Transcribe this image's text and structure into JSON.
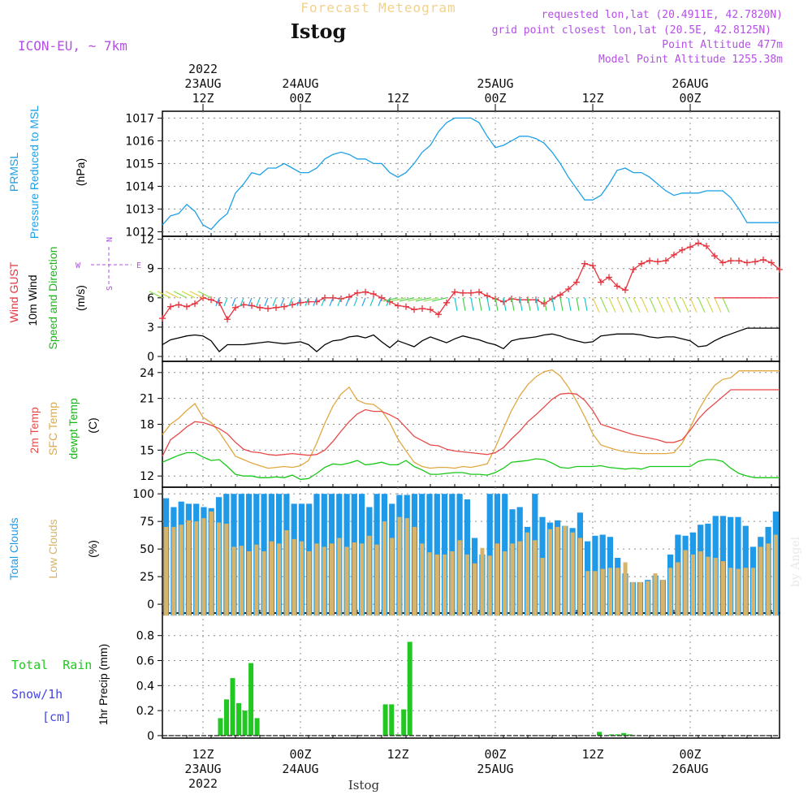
{
  "header": {
    "title": "Forecast Meteogram",
    "station": "Istog",
    "model": "ICON-EU, ~ 7km",
    "requested": "requested lon,lat (20.4911E, 42.7820N)",
    "grid_point": "grid point closest lon,lat (20.5E, 42.8125N)",
    "point_altitude": "Point Altitude 477m",
    "model_altitude": "Model Point Altitude 1255.38m",
    "footer_station": "Istog",
    "watermark": "by Angel"
  },
  "time_axis": {
    "top": [
      {
        "line1": "2022",
        "line2": "23AUG",
        "line3": "12Z"
      },
      {
        "line1": "",
        "line2": "24AUG",
        "line3": "00Z"
      },
      {
        "line1": "",
        "line2": "",
        "line3": "12Z"
      },
      {
        "line1": "",
        "line2": "25AUG",
        "line3": "00Z"
      },
      {
        "line1": "",
        "line2": "",
        "line3": "12Z"
      },
      {
        "line1": "",
        "line2": "26AUG",
        "line3": "00Z"
      }
    ],
    "bottom": [
      {
        "line1": "12Z",
        "line2": "23AUG",
        "line3": "2022"
      },
      {
        "line1": "00Z",
        "line2": "24AUG",
        "line3": ""
      },
      {
        "line1": "12Z",
        "line2": "",
        "line3": ""
      },
      {
        "line1": "00Z",
        "line2": "25AUG",
        "line3": ""
      },
      {
        "line1": "12Z",
        "line2": "",
        "line3": ""
      },
      {
        "line1": "00Z",
        "line2": "26AUG",
        "line3": ""
      }
    ],
    "x_range_hours": [
      0,
      76
    ],
    "major_ticks_hours": [
      5,
      17,
      29,
      41,
      53,
      65
    ]
  },
  "colors": {
    "pressure": "#1ea0e6",
    "gust": "#e6323c",
    "wind": "#000000",
    "temp2m": "#e84a4a",
    "sfc_temp": "#e0a840",
    "dewpt": "#18c818",
    "total_clouds": "#1e9ae8",
    "low_clouds": "#d7b46a",
    "rain": "#22c822",
    "snow": "#4646e6",
    "header_purple": "#b450e6",
    "title_gold": "#f0d28c",
    "grid": "#8c8c8c"
  },
  "panels": {
    "pressure": {
      "labels": [
        "PRMSL",
        "Pressure Reduced to MSL"
      ],
      "unit": "(hPa)",
      "ticks": [
        "1012",
        "1013",
        "1014",
        "1015",
        "1016",
        "1017"
      ]
    },
    "wind": {
      "labels": [
        "Wind GUST",
        "10m Wind",
        "Speed and Direction"
      ],
      "unit": "(m/s)",
      "ticks": [
        "0",
        "3",
        "6",
        "9",
        "12"
      ],
      "compass": {
        "n": "N",
        "s": "S",
        "w": "W",
        "e": "E"
      }
    },
    "temp": {
      "labels": [
        "2m Temp",
        "SFC Temp",
        "dewpt Temp"
      ],
      "unit": "(C)",
      "ticks": [
        "12",
        "15",
        "18",
        "21",
        "24"
      ]
    },
    "clouds": {
      "labels": [
        "Total Clouds",
        "Low Clouds"
      ],
      "unit": "(%)",
      "ticks": [
        "0",
        "25",
        "50",
        "75",
        "100"
      ]
    },
    "precip": {
      "labels": [
        "Total  Rain",
        "Snow/1h",
        "[cm]"
      ],
      "unit": "1hr Precip (mm)",
      "ticks": [
        "0",
        "0.2",
        "0.4",
        "0.6",
        "0.8"
      ]
    }
  },
  "chart_data": [
    {
      "type": "line",
      "title": "PRMSL Pressure Reduced to MSL",
      "ylabel": "(hPa)",
      "ylim": [
        1011.8,
        1017.3
      ],
      "x": [
        0,
        1,
        2,
        3,
        4,
        5,
        6,
        7,
        8,
        9,
        10,
        11,
        12,
        13,
        14,
        15,
        16,
        17,
        18,
        19,
        20,
        21,
        22,
        23,
        24,
        25,
        26,
        27,
        28,
        29,
        30,
        31,
        32,
        33,
        34,
        35,
        36,
        37,
        38,
        39,
        40,
        41,
        42,
        43,
        44,
        45,
        46,
        47,
        48,
        49,
        50,
        51,
        52,
        53,
        54,
        55,
        56,
        57,
        58,
        59,
        60,
        61,
        62,
        63,
        64,
        65,
        66,
        67,
        68,
        69,
        70,
        71,
        72,
        73,
        74,
        75,
        76
      ],
      "series": [
        {
          "name": "PRMSL",
          "values": [
            1012.3,
            1012.7,
            1012.8,
            1013.2,
            1012.9,
            1012.3,
            1012.1,
            1012.5,
            1012.8,
            1013.7,
            1014.1,
            1014.6,
            1014.5,
            1014.8,
            1014.8,
            1015.0,
            1014.8,
            1014.6,
            1014.6,
            1014.8,
            1015.2,
            1015.4,
            1015.5,
            1015.4,
            1015.2,
            1015.2,
            1015.0,
            1015.0,
            1014.6,
            1014.4,
            1014.6,
            1015.0,
            1015.5,
            1015.8,
            1016.4,
            1016.8,
            1017.0,
            1017.0,
            1017.0,
            1016.8,
            1016.2,
            1015.7,
            1015.8,
            1016.0,
            1016.2,
            1016.2,
            1016.1,
            1015.9,
            1015.5,
            1015.0,
            1014.4,
            1013.9,
            1013.4,
            1013.4,
            1013.6,
            1014.1,
            1014.7,
            1014.8,
            1014.6,
            1014.6,
            1014.4,
            1014.1,
            1013.8,
            1013.6,
            1013.7,
            1013.7,
            1013.7,
            1013.8,
            1013.8,
            1013.8,
            1013.5,
            1013.0,
            1012.4,
            1012.4,
            1012.4,
            1012.4,
            1012.4
          ]
        }
      ]
    },
    {
      "type": "line",
      "title": "Wind GUST / 10m Wind",
      "ylabel": "(m/s)",
      "ylim": [
        -0.5,
        12.3
      ],
      "series": [
        {
          "name": "Wind GUST",
          "values": [
            3.9,
            5.1,
            5.3,
            5.1,
            5.4,
            6.0,
            5.8,
            5.5,
            3.8,
            5.0,
            5.3,
            5.2,
            5.0,
            4.9,
            5.0,
            5.1,
            5.3,
            5.5,
            5.6,
            5.6,
            6.0,
            6.0,
            5.9,
            6.1,
            6.5,
            6.6,
            6.4,
            6.0,
            5.6,
            5.2,
            5.1,
            4.8,
            4.9,
            4.8,
            4.3,
            5.5,
            6.6,
            6.5,
            6.5,
            6.6,
            6.2,
            5.9,
            5.6,
            5.9,
            5.8,
            5.8,
            5.8,
            5.4,
            5.9,
            6.3,
            6.9,
            7.6,
            9.5,
            9.3,
            7.6,
            8.1,
            7.2,
            6.8,
            8.9,
            9.5,
            9.8,
            9.7,
            9.8,
            10.4,
            10.9,
            11.2,
            11.6,
            11.3,
            10.3,
            9.6,
            9.8,
            9.8,
            9.6,
            9.7,
            9.9,
            9.6,
            8.9
          ]
        },
        {
          "name": "10m Wind",
          "values": [
            1.2,
            1.7,
            1.9,
            2.1,
            2.2,
            2.1,
            1.6,
            0.5,
            1.2,
            1.2,
            1.2,
            1.3,
            1.4,
            1.5,
            1.4,
            1.3,
            1.4,
            1.5,
            1.2,
            0.5,
            1.2,
            1.6,
            1.7,
            2.0,
            2.1,
            1.9,
            2.2,
            1.5,
            0.9,
            1.6,
            1.3,
            1.0,
            1.6,
            2.0,
            1.7,
            1.4,
            1.8,
            2.1,
            1.9,
            1.7,
            1.4,
            1.2,
            0.8,
            1.6,
            1.8,
            1.9,
            2.0,
            2.2,
            2.3,
            2.1,
            1.8,
            1.6,
            1.4,
            1.5,
            2.1,
            2.2,
            2.3,
            2.3,
            2.3,
            2.2,
            2.0,
            1.9,
            2.0,
            2.0,
            1.8,
            1.6,
            1.0,
            1.1,
            1.6,
            2.0,
            2.3,
            2.6,
            2.9,
            2.9,
            2.9,
            2.9,
            2.9
          ]
        }
      ]
    },
    {
      "type": "line",
      "title": "2m Temp / SFC Temp / dewpt Temp",
      "ylabel": "(C)",
      "ylim": [
        10.7,
        25.3
      ],
      "series": [
        {
          "name": "2m Temp",
          "values": [
            14.3,
            16.2,
            16.9,
            17.7,
            18.3,
            18.2,
            17.9,
            17.5,
            16.9,
            15.9,
            15.1,
            14.8,
            14.7,
            14.5,
            14.4,
            14.5,
            14.6,
            14.5,
            14.4,
            14.5,
            15.0,
            16.0,
            17.2,
            18.3,
            19.2,
            19.7,
            19.5,
            19.5,
            19.1,
            18.6,
            17.6,
            16.6,
            16.1,
            15.6,
            15.5,
            15.1,
            14.9,
            14.8,
            14.7,
            14.6,
            14.5,
            14.7,
            15.3,
            16.3,
            17.2,
            18.3,
            19.1,
            20.0,
            20.9,
            21.5,
            21.6,
            21.5,
            20.8,
            19.6,
            18.0,
            17.7,
            17.4,
            17.1,
            16.8,
            16.6,
            16.4,
            16.2,
            15.9,
            15.9,
            16.2,
            17.3,
            18.6,
            19.6,
            20.4,
            21.2,
            22.0,
            22.0,
            22.0,
            22.0,
            22.0,
            22.0,
            22.0
          ]
        },
        {
          "name": "SFC Temp",
          "values": [
            16.8,
            18.0,
            18.7,
            19.6,
            20.4,
            18.8,
            18.2,
            17.1,
            15.7,
            14.3,
            13.9,
            13.5,
            13.2,
            12.9,
            13.0,
            13.1,
            13.0,
            13.2,
            13.8,
            15.8,
            18.1,
            20.1,
            21.5,
            22.3,
            20.8,
            20.4,
            20.3,
            19.6,
            18.2,
            16.3,
            14.9,
            13.6,
            13.1,
            12.9,
            13.0,
            13.0,
            12.9,
            13.1,
            13.0,
            13.2,
            13.4,
            15.3,
            17.5,
            19.6,
            21.3,
            22.6,
            23.5,
            24.1,
            24.3,
            23.6,
            22.3,
            20.7,
            18.9,
            16.9,
            15.6,
            15.3,
            15.0,
            14.8,
            14.7,
            14.6,
            14.6,
            14.6,
            14.6,
            14.7,
            15.8,
            17.6,
            19.6,
            21.2,
            22.5,
            23.2,
            23.4,
            24.2,
            24.2,
            24.2,
            24.2,
            24.2,
            24.2
          ]
        },
        {
          "name": "dewpt Temp",
          "values": [
            13.6,
            14.0,
            14.4,
            14.7,
            14.7,
            14.2,
            13.8,
            13.9,
            13.1,
            12.2,
            12.0,
            12.0,
            11.8,
            11.8,
            11.9,
            11.8,
            12.1,
            11.6,
            11.7,
            12.3,
            13.0,
            13.4,
            13.3,
            13.5,
            13.8,
            13.3,
            13.4,
            13.6,
            13.3,
            13.3,
            13.8,
            13.1,
            12.7,
            12.2,
            12.2,
            12.3,
            12.4,
            12.4,
            12.2,
            12.2,
            12.1,
            12.4,
            12.9,
            13.6,
            13.7,
            13.8,
            14.0,
            13.9,
            13.5,
            13.0,
            12.9,
            13.1,
            13.1,
            13.1,
            13.2,
            13.0,
            12.9,
            12.8,
            12.9,
            12.8,
            13.1,
            13.1,
            13.1,
            13.1,
            13.1,
            13.1,
            13.7,
            13.9,
            13.9,
            13.7,
            12.9,
            12.3,
            12.0,
            11.8,
            11.8,
            11.8,
            11.8
          ]
        }
      ]
    },
    {
      "type": "bar",
      "title": "Total Clouds / Low Clouds",
      "ylabel": "(%)",
      "ylim": [
        -8,
        106
      ],
      "series": [
        {
          "name": "Total Clouds",
          "values": [
            96,
            88,
            93,
            91,
            91,
            88,
            87,
            97,
            100,
            100,
            100,
            100,
            100,
            100,
            100,
            100,
            100,
            91,
            91,
            91,
            100,
            100,
            100,
            100,
            100,
            100,
            100,
            88,
            100,
            100,
            91,
            99,
            99,
            100,
            100,
            100,
            100,
            100,
            100,
            100,
            95,
            60,
            45,
            100,
            100,
            100,
            86,
            88,
            70,
            100,
            79,
            74,
            76,
            71,
            69,
            83,
            57,
            62,
            63,
            61,
            42,
            28,
            20,
            20,
            22,
            26,
            22,
            45,
            63,
            62,
            65,
            72,
            73,
            80,
            80,
            79,
            79,
            71,
            52,
            61,
            70,
            84
          ]
        },
        {
          "name": "Low Clouds",
          "values": [
            70,
            70,
            72,
            76,
            75,
            78,
            84,
            74,
            73,
            52,
            53,
            48,
            54,
            48,
            57,
            55,
            67,
            59,
            57,
            48,
            55,
            52,
            55,
            60,
            52,
            56,
            55,
            62,
            54,
            75,
            60,
            79,
            78,
            70,
            55,
            47,
            45,
            45,
            48,
            58,
            45,
            37,
            51,
            44,
            55,
            48,
            55,
            57,
            65,
            58,
            42,
            68,
            70,
            71,
            65,
            60,
            30,
            30,
            32,
            33,
            33,
            38,
            20,
            20,
            21,
            28,
            22,
            33,
            38,
            49,
            45,
            48,
            43,
            42,
            39,
            33,
            32,
            33,
            33,
            52,
            55,
            63,
            66
          ]
        }
      ]
    },
    {
      "type": "bar",
      "title": "Total Rain / Snow/1h",
      "ylabel": "1hr Precip (mm)",
      "ylim": [
        -0.02,
        0.98
      ],
      "series": [
        {
          "name": "Total Rain",
          "values": [
            0,
            0,
            0,
            0,
            0,
            0,
            0,
            0,
            0,
            0.14,
            0.29,
            0.46,
            0.26,
            0.2,
            0.58,
            0.14,
            0,
            0,
            0,
            0,
            0,
            0,
            0,
            0,
            0,
            0,
            0,
            0,
            0,
            0,
            0,
            0,
            0,
            0,
            0,
            0,
            0.25,
            0.25,
            0.01,
            0.21,
            0.75,
            0,
            0,
            0,
            0,
            0,
            0,
            0,
            0,
            0,
            0,
            0,
            0,
            0,
            0,
            0,
            0,
            0,
            0,
            0,
            0,
            0,
            0,
            0,
            0,
            0,
            0,
            0,
            0,
            0,
            0,
            0.03,
            0,
            0.01,
            0.01,
            0.02,
            0.01,
            0,
            0,
            0,
            0,
            0,
            0,
            0,
            0,
            0,
            0,
            0,
            0,
            0,
            0,
            0,
            0,
            0,
            0,
            0,
            0,
            0,
            0,
            0,
            0
          ]
        },
        {
          "name": "Snow/1h",
          "values": [
            0
          ]
        }
      ]
    }
  ]
}
